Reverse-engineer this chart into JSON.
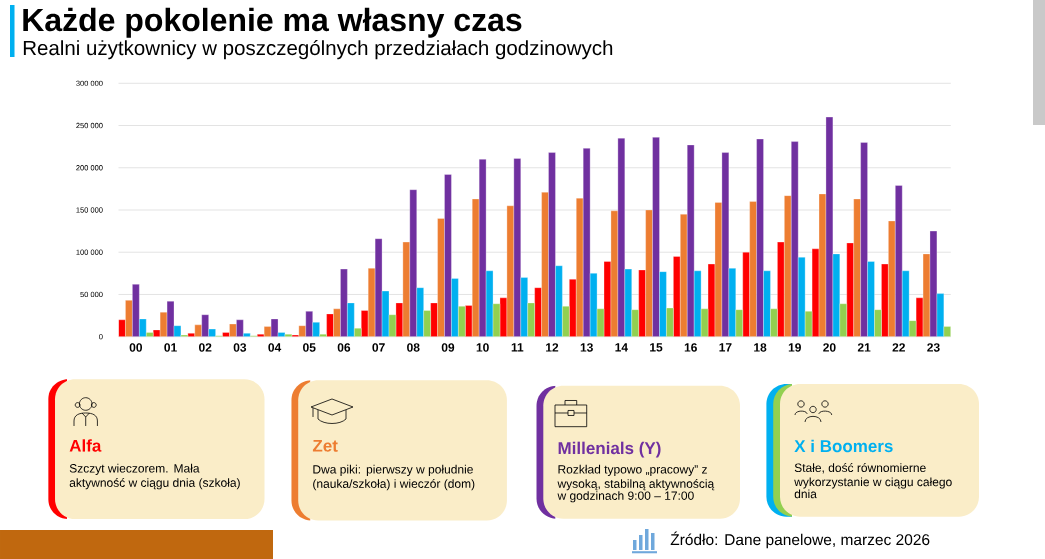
{
  "chart_data": {
    "type": "bar",
    "title": "Każde pokolenie ma własny czas",
    "subtitle": "Realni użytkownicy w poszczególnych przedziałach godzinowych",
    "categories": [
      "00",
      "01",
      "02",
      "03",
      "04",
      "05",
      "06",
      "07",
      "08",
      "09",
      "10",
      "11",
      "12",
      "13",
      "14",
      "15",
      "16",
      "17",
      "18",
      "19",
      "20",
      "21",
      "22",
      "23"
    ],
    "series": [
      {
        "name": "Alfa",
        "color": "#ff0000",
        "values": [
          20000,
          8000,
          4000,
          5000,
          3000,
          2000,
          27000,
          31000,
          40000,
          40000,
          37000,
          46000,
          58000,
          68000,
          89000,
          79000,
          95000,
          86000,
          100000,
          112000,
          104000,
          111000,
          86000,
          46000
        ]
      },
      {
        "name": "Zet",
        "color": "#ed7d31",
        "values": [
          43000,
          29000,
          14000,
          15000,
          12000,
          13000,
          33000,
          81000,
          112000,
          140000,
          163000,
          155000,
          171000,
          164000,
          149000,
          150000,
          145000,
          159000,
          160000,
          167000,
          169000,
          163000,
          137000,
          98000
        ]
      },
      {
        "name": "Millenials (Y)",
        "color": "#7030a0",
        "values": [
          62000,
          42000,
          26000,
          20000,
          21000,
          30000,
          80000,
          116000,
          174000,
          192000,
          210000,
          211000,
          218000,
          223000,
          235000,
          236000,
          227000,
          218000,
          234000,
          231000,
          260000,
          230000,
          179000,
          125000
        ]
      },
      {
        "name": "X i Boomers",
        "color": "#00b0f0",
        "values": [
          21000,
          13000,
          9000,
          4000,
          5000,
          17000,
          40000,
          54000,
          58000,
          69000,
          78000,
          70000,
          84000,
          75000,
          80000,
          77000,
          78000,
          81000,
          78000,
          94000,
          98000,
          89000,
          78000,
          51000
        ]
      },
      {
        "color": "#92d050",
        "values": [
          5000,
          2000,
          1000,
          1000,
          3000,
          3000,
          10000,
          26000,
          31000,
          36000,
          39000,
          40000,
          36000,
          33000,
          32000,
          34000,
          33000,
          32000,
          33000,
          30000,
          39000,
          32000,
          19000,
          12000
        ]
      }
    ],
    "ylim": [
      0,
      300000
    ],
    "yticks": [
      0,
      {
        "value": 50000,
        "label": "50 000"
      },
      {
        "value": 100000,
        "label": "100 000"
      },
      {
        "value": 150000,
        "label": "150 000"
      },
      {
        "value": 200000,
        "label": "200 000"
      },
      {
        "value": 250000,
        "label": "250 000"
      },
      {
        "value": 300000,
        "label": "300 000"
      }
    ],
    "grid": "y",
    "legend": "bottom",
    "annotations": [
      "Szczyt wieczorem. Mała aktywność w ciągu dnia (szkoła)",
      "Dwa piki: pierwszy w południe (nauka/szkoła) i wieczór (dom)",
      "Rozkład typowo „pracowy” z wysoką, stabilną aktywnością w godzinach 9:00 – 17:00",
      "Stałe, dość równomierne wykorzystanie w ciągu całego dnia",
      "Źródło: Dane panelowe, marzec 2026"
    ]
  }
}
